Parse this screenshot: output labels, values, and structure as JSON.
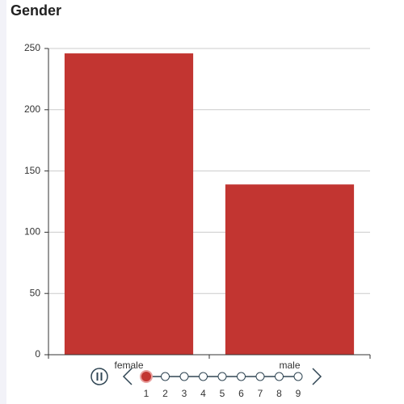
{
  "chart_data": {
    "type": "bar",
    "title": "Gender",
    "categories": [
      "female",
      "male"
    ],
    "values": [
      246,
      139
    ],
    "color": "#c23531",
    "ylim": [
      0,
      250
    ],
    "yticks": [
      0,
      50,
      100,
      150,
      200,
      250
    ],
    "grid": true
  },
  "timeline": {
    "labels": [
      "1",
      "2",
      "3",
      "4",
      "5",
      "6",
      "7",
      "8",
      "9"
    ],
    "current_index": 0,
    "color": "#304654",
    "current_color": "#c23531"
  }
}
